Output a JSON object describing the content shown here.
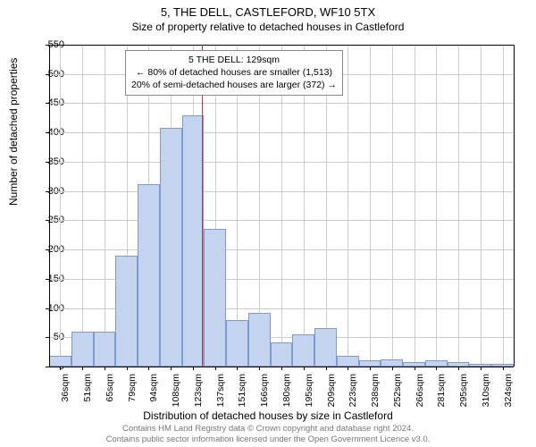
{
  "title": "5, THE DELL, CASTLEFORD, WF10 5TX",
  "subtitle": "Size of property relative to detached houses in Castleford",
  "annotation": {
    "line1": "5 THE DELL: 129sqm",
    "line2": "← 80% of detached houses are smaller (1,513)",
    "line3": "20% of semi-detached houses are larger (372) →"
  },
  "marker_x_value": 129,
  "chart": {
    "type": "histogram",
    "bar_color": "#c5d4ee",
    "bar_border_color": "#7a9bd4",
    "marker_color": "#cc3333",
    "grid_color": "#cccccc",
    "background_color": "#ffffff",
    "ylabel": "Number of detached properties",
    "xlabel": "Distribution of detached houses by size in Castleford",
    "ylim": [
      0,
      550
    ],
    "ytick_step": 50,
    "x_start": 29,
    "bin_width": 14.5,
    "x_tick_labels": [
      "36sqm",
      "51sqm",
      "65sqm",
      "79sqm",
      "94sqm",
      "108sqm",
      "123sqm",
      "137sqm",
      "151sqm",
      "166sqm",
      "180sqm",
      "195sqm",
      "209sqm",
      "223sqm",
      "238sqm",
      "252sqm",
      "266sqm",
      "281sqm",
      "295sqm",
      "310sqm",
      "324sqm"
    ],
    "bars": [
      18,
      60,
      60,
      190,
      312,
      408,
      430,
      235,
      80,
      92,
      42,
      55,
      65,
      18,
      10,
      12,
      8,
      10,
      8,
      5,
      5
    ]
  },
  "footnote": {
    "line1": "Contains HM Land Registry data © Crown copyright and database right 2024.",
    "line2": "Contains public sector information licensed under the Open Government Licence v3.0."
  }
}
